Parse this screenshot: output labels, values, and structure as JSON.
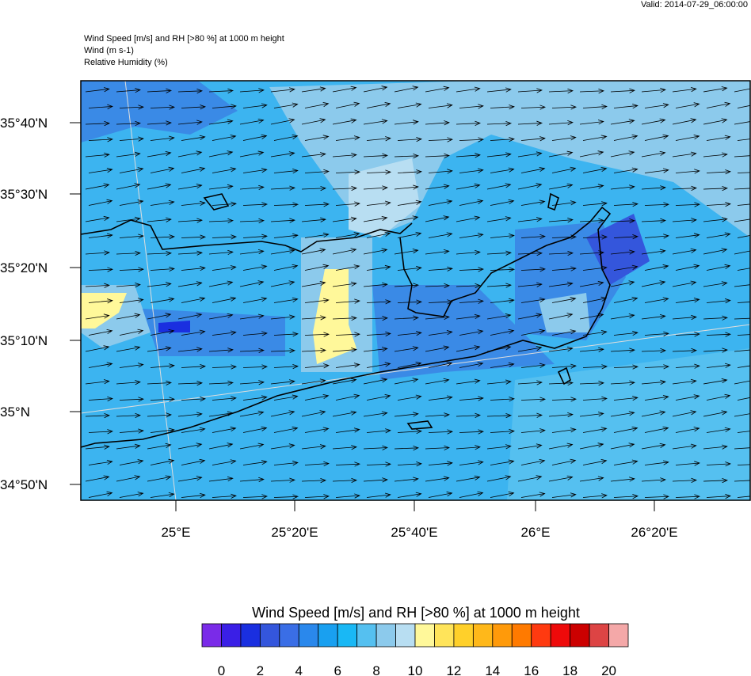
{
  "header": {
    "valid": "Valid: 2014-07-29_06:00:00",
    "lines": [
      "Wind Speed [m/s] and RH [>80 %] at 1000 m height",
      "Wind   (m s-1)",
      "Relative Humidity   (%)"
    ]
  },
  "map": {
    "lat_labels": [
      "35°40'N",
      "35°30'N",
      "35°20'N",
      "35°10'N",
      "35°N",
      "34°50'N"
    ],
    "lon_labels": [
      "25°E",
      "25°20'E",
      "25°40'E",
      "26°E",
      "26°20'E"
    ]
  },
  "colorbar": {
    "title": "Wind Speed [m/s] and RH [>80 %] at 1000 m height",
    "colors": [
      "#7a2be8",
      "#3a1fe6",
      "#1a2fe0",
      "#3456dc",
      "#3a6ee6",
      "#2a88ec",
      "#19a0f0",
      "#19b8f5",
      "#55c0f0",
      "#8ccaec",
      "#b8def2",
      "#fff89a",
      "#ffe45a",
      "#ffd02a",
      "#ffb81a",
      "#ff9a0a",
      "#ff7a00",
      "#ff3a10",
      "#ee0a0a",
      "#cc0000",
      "#dd4444",
      "#f4a8a8"
    ],
    "labels": [
      0,
      2,
      4,
      6,
      8,
      10,
      12,
      14,
      16,
      18,
      20
    ]
  }
}
